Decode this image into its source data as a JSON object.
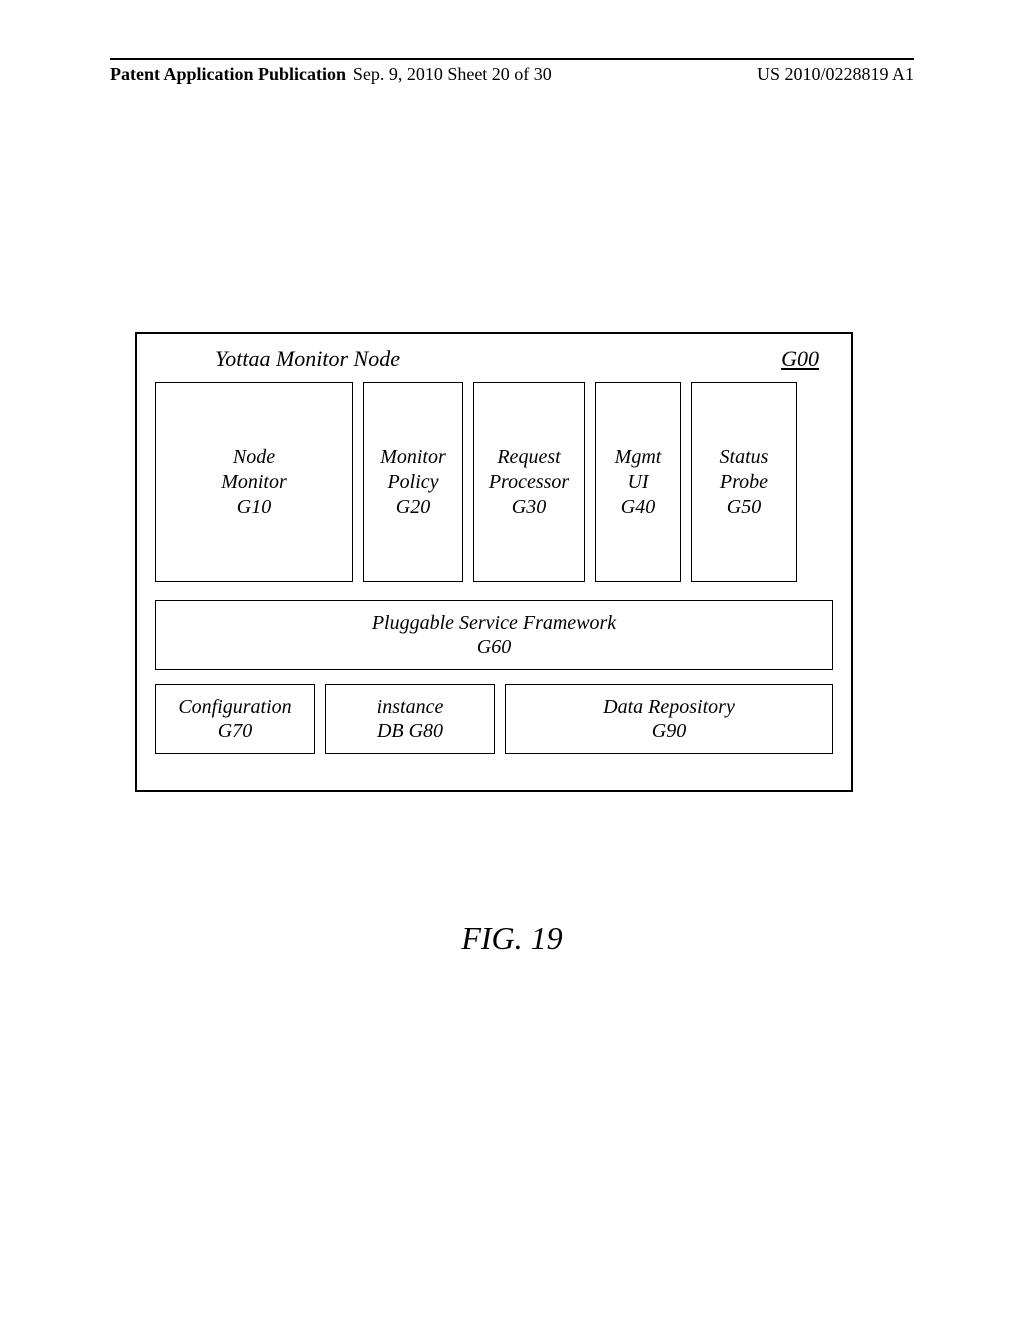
{
  "header": {
    "left": "Patent Application Publication",
    "center": "Sep. 9, 2010  Sheet 20 of 30",
    "right": "US 2010/0228819 A1"
  },
  "diagram": {
    "title": "Yottaa Monitor  Node",
    "ref": "G00",
    "top": {
      "g10": {
        "l1": "Node",
        "l2": "Monitor",
        "l3": "G10"
      },
      "g20": {
        "l1": "Monitor",
        "l2": "Policy",
        "l3": "G20"
      },
      "g30": {
        "l1": "Request",
        "l2": "Processor",
        "l3": "G30"
      },
      "g40": {
        "l1": "Mgmt",
        "l2": "UI",
        "l3": "G40"
      },
      "g50": {
        "l1": "Status",
        "l2": "Probe",
        "l3": "G50"
      }
    },
    "mid": {
      "l1": "Pluggable Service Framework",
      "l2": "G60"
    },
    "bot": {
      "g70": {
        "l1": "Configuration",
        "l2": "G70"
      },
      "g80": {
        "l1": "instance",
        "l2": "DB G80"
      },
      "g90": {
        "l1": "Data Repository",
        "l2": "G90"
      }
    }
  },
  "caption": "FIG. 19"
}
